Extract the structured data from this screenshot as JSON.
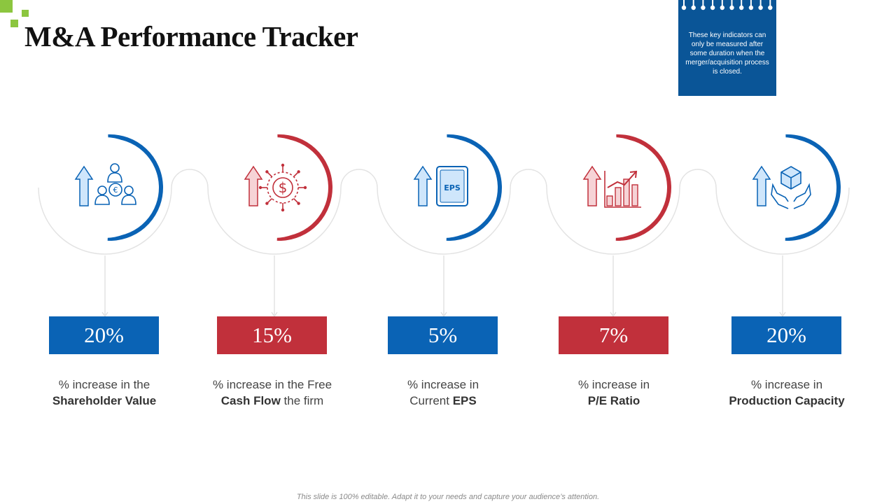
{
  "slide": {
    "title": "M&A Performance Tracker",
    "note": "These key indicators can only be measured after some duration when the merger/acquisition process is closed.",
    "footer": "This slide is 100% editable. Adapt it to your needs and capture your audience’s attention."
  },
  "colors": {
    "blue": "#0a63b5",
    "red": "#c1303b",
    "accent_green": "#8cc63f",
    "note_bg": "#0a5597"
  },
  "metrics": [
    {
      "value": "20%",
      "color": "blue",
      "icon": "shareholders-euro-icon",
      "caption_line1": "% increase in the",
      "caption_bold": "Shareholder Value",
      "caption_rest": ""
    },
    {
      "value": "15%",
      "color": "red",
      "icon": "dollar-cash-flow-icon",
      "caption_line1": "% increase in the Free",
      "caption_bold": "Cash Flow",
      "caption_rest": " the firm"
    },
    {
      "value": "5%",
      "color": "blue",
      "icon": "eps-document-icon",
      "caption_line1": "% increase in",
      "caption_pre": "Current ",
      "caption_bold": "EPS",
      "caption_rest": ""
    },
    {
      "value": "7%",
      "color": "red",
      "icon": "bar-chart-growth-icon",
      "caption_line1": "% increase in",
      "caption_bold": "P/E Ratio",
      "caption_rest": ""
    },
    {
      "value": "20%",
      "color": "blue",
      "icon": "cube-in-hands-icon",
      "caption_line1": "% increase in",
      "caption_bold": "Production Capacity",
      "caption_rest": ""
    }
  ]
}
